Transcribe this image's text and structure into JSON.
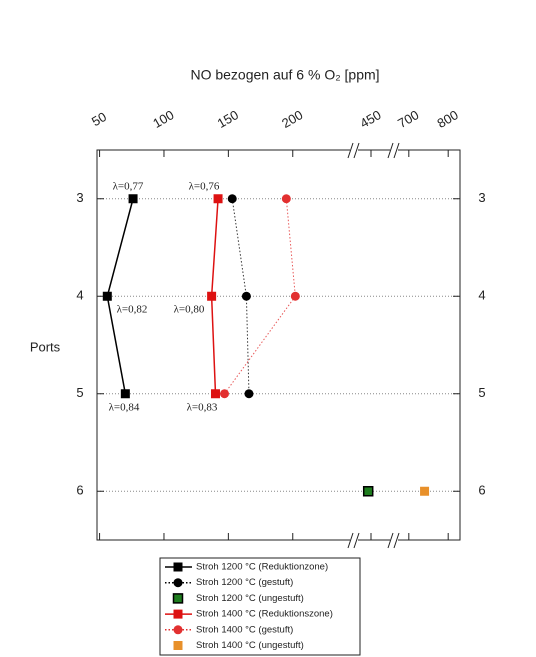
{
  "chart_data": {
    "type": "line",
    "title": "NO bezogen auf 6 % O₂ [ppm]",
    "y_label": "Ports",
    "xsegments": [
      [
        48,
        246
      ],
      [
        430,
        480
      ],
      [
        670,
        830
      ]
    ],
    "xticks": [
      50,
      100,
      150,
      200,
      450,
      700,
      800
    ],
    "ylim": [
      2.5,
      6.5
    ],
    "yticks": [
      3,
      4,
      5,
      6
    ],
    "y_inverted": true,
    "grid": true,
    "legend_position": "bottom",
    "series": [
      {
        "name": "Stroh 1200 °C (Reduktionzone)",
        "color": "#000000",
        "marker": "square",
        "line": "solid",
        "x": [
          76,
          56,
          70
        ],
        "y": [
          3,
          4,
          5
        ]
      },
      {
        "name": "Stroh 1200 °C (gestuft)",
        "color": "#000000",
        "marker": "circle",
        "line": "dotted",
        "x": [
          153,
          164,
          166
        ],
        "y": [
          3,
          4,
          5
        ]
      },
      {
        "name": "Stroh 1200 °C (ungestuft)",
        "color": "#1e7d1e",
        "marker": "square",
        "line": "none",
        "x": [
          446
        ],
        "y": [
          6
        ]
      },
      {
        "name": "Stroh 1400 °C (Reduktionszone)",
        "color": "#dd1111",
        "marker": "square",
        "line": "solid",
        "x": [
          142,
          137,
          140
        ],
        "y": [
          3,
          4,
          5
        ]
      },
      {
        "name": "Stroh 1400 °C (gestuft)",
        "color": "#e23030",
        "marker": "circle",
        "line": "dotted",
        "x": [
          195,
          202,
          147
        ],
        "y": [
          3,
          4,
          5
        ]
      },
      {
        "name": "Stroh 1400 °C (ungestuft)",
        "color": "#e8902a",
        "marker": "square",
        "line": "none",
        "x": [
          740
        ],
        "y": [
          6
        ]
      }
    ],
    "annotations": [
      "λ=0,77",
      "λ=0,76",
      "λ=0,82",
      "λ=0,80",
      "λ=0,84",
      "λ=0,83"
    ]
  }
}
